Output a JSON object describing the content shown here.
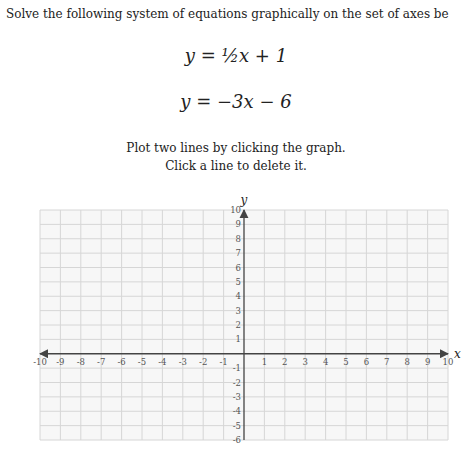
{
  "chart_data": {
    "type": "axes",
    "title": "Solve the following system of equations graphically on the set of axes be",
    "annotations": [
      "y = ½x + 1",
      "y = −3x − 6",
      "Plot two lines by clicking the graph.",
      "Click a line to delete it."
    ],
    "x_label": "x",
    "y_label": "y",
    "xlim": [
      -10,
      10
    ],
    "ylim": [
      -6,
      10
    ],
    "xticks": [
      -10,
      -9,
      -8,
      -7,
      -6,
      -5,
      -4,
      -3,
      -2,
      -1,
      1,
      2,
      3,
      4,
      5,
      6,
      7,
      8,
      9,
      10
    ],
    "yticks": [
      -6,
      -5,
      -4,
      -3,
      -2,
      -1,
      1,
      2,
      3,
      4,
      5,
      6,
      7,
      8,
      9,
      10
    ],
    "grid": true
  }
}
